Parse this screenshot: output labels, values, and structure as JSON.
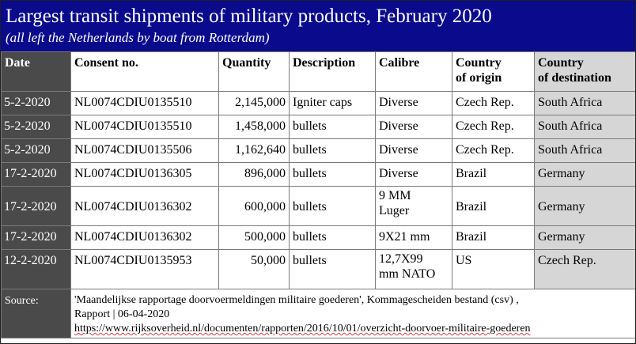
{
  "title": "Largest transit shipments of military products, February 2020",
  "subtitle": "(all left the Netherlands by boat from Rotterdam)",
  "columns": {
    "date": "Date",
    "consent": "Consent no.",
    "quantity": "Quantity",
    "description": "Description",
    "calibre": "Calibre",
    "origin_1": "Country",
    "origin_2": "of origin",
    "destination_1": "Country",
    "destination_2": "of destination"
  },
  "rows": [
    {
      "date": "5-2-2020",
      "consent": "NL0074CDIU0135510",
      "quantity": "2,145,000",
      "description": "Igniter caps",
      "calibre": "Diverse",
      "origin": "Czech Rep.",
      "destination": "South Africa"
    },
    {
      "date": "5-2-2020",
      "consent": "NL0074CDIU0135510",
      "quantity": "1,458,000",
      "description": "bullets",
      "calibre": "Diverse",
      "origin": "Czech Rep.",
      "destination": "South Africa"
    },
    {
      "date": "5-2-2020",
      "consent": "NL0074CDIU0135506",
      "quantity": "1,162,640",
      "description": "bullets",
      "calibre": "Diverse",
      "origin": "Czech Rep.",
      "destination": "South Africa"
    },
    {
      "date": "17-2-2020",
      "consent": "NL0074CDIU0136305",
      "quantity": "896,000",
      "description": "bullets",
      "calibre": "Diverse",
      "origin": "Brazil",
      "destination": "Germany"
    },
    {
      "date": "17-2-2020",
      "consent": "NL0074CDIU0136302",
      "quantity": "600,000",
      "description": "bullets",
      "calibre_1": "9 MM",
      "calibre_2": "Luger",
      "origin": "Brazil",
      "destination": "Germany"
    },
    {
      "date": "17-2-2020",
      "consent": "NL0074CDIU0136302",
      "quantity": "500,000",
      "description": "bullets",
      "calibre": "9X21 mm",
      "origin": "Brazil",
      "destination": "Germany"
    },
    {
      "date": "12-2-2020",
      "consent": "NL0074CDIU0135953",
      "quantity": "50,000",
      "description": "bullets",
      "calibre_1": "12,7X99",
      "calibre_2": "mm NATO",
      "origin": "US",
      "destination": "Czech Rep."
    }
  ],
  "source": {
    "label": "Source:",
    "line1": "'Maandelijkse rapportage doorvoermeldingen militaire goederen', Kommagescheiden bestand (csv) ,",
    "line2": "Rapport | 06-04-2020",
    "line3": "https://www.rijksoverheid.nl/documenten/rapporten/2016/10/01/overzicht-doorvoer-militaire-goederen"
  },
  "colors": {
    "header_bg": "#0a0a8c",
    "date_column_bg": "#4a4a4a",
    "destination_column_bg": "#d6d6d6"
  }
}
